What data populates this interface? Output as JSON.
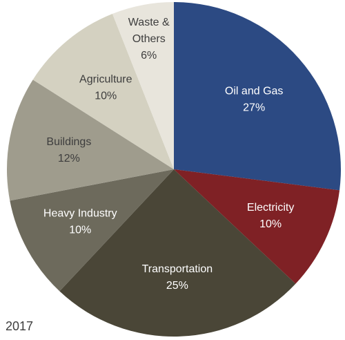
{
  "chart_data": {
    "type": "pie",
    "start_angle_deg": 0,
    "direction": "clockwise",
    "slices": [
      {
        "label": "Oil and Gas",
        "value": 27,
        "value_label": "27%",
        "color": "#2c4a83",
        "text_color": "#ffffff"
      },
      {
        "label": "Electricity",
        "value": 10,
        "value_label": "10%",
        "color": "#7f2125",
        "text_color": "#ffffff"
      },
      {
        "label": "Transportation",
        "value": 25,
        "value_label": "25%",
        "color": "#4a4637",
        "text_color": "#ffffff"
      },
      {
        "label": "Heavy Industry",
        "value": 10,
        "value_label": "10%",
        "color": "#6d6a5c",
        "text_color": "#ffffff"
      },
      {
        "label": "Buildings",
        "value": 12,
        "value_label": "12%",
        "color": "#9f9c8d",
        "text_color": "#3d3d3d"
      },
      {
        "label": "Agriculture",
        "value": 10,
        "value_label": "10%",
        "color": "#d4d1c1",
        "text_color": "#3d3d3d"
      },
      {
        "label": "Waste & Others",
        "label_lines": [
          "Waste &",
          "Others"
        ],
        "value": 6,
        "value_label": "6%",
        "color": "#e8e5dc",
        "text_color": "#3d3d3d"
      }
    ]
  },
  "year_label": "2017"
}
